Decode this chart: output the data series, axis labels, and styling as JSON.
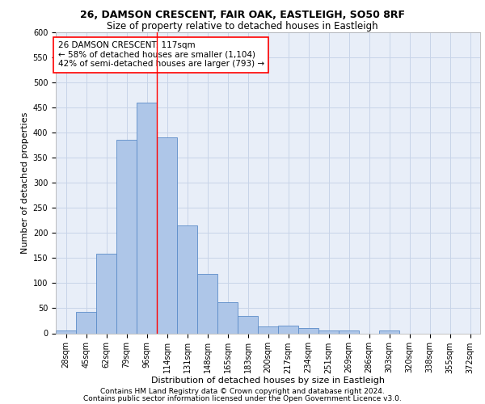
{
  "title1": "26, DAMSON CRESCENT, FAIR OAK, EASTLEIGH, SO50 8RF",
  "title2": "Size of property relative to detached houses in Eastleigh",
  "xlabel": "Distribution of detached houses by size in Eastleigh",
  "ylabel": "Number of detached properties",
  "categories": [
    "28sqm",
    "45sqm",
    "62sqm",
    "79sqm",
    "96sqm",
    "114sqm",
    "131sqm",
    "148sqm",
    "165sqm",
    "183sqm",
    "200sqm",
    "217sqm",
    "234sqm",
    "251sqm",
    "269sqm",
    "286sqm",
    "303sqm",
    "320sqm",
    "338sqm",
    "355sqm",
    "372sqm"
  ],
  "values": [
    5,
    42,
    158,
    385,
    460,
    390,
    215,
    118,
    62,
    35,
    14,
    15,
    10,
    6,
    5,
    0,
    5,
    0,
    0,
    0,
    0
  ],
  "bar_color": "#aec6e8",
  "bar_edge_color": "#5b8cc8",
  "grid_color": "#c8d4e8",
  "background_color": "#e8eef8",
  "vline_color": "red",
  "vline_x": 4.5,
  "annotation_text": "26 DAMSON CRESCENT: 117sqm\n← 58% of detached houses are smaller (1,104)\n42% of semi-detached houses are larger (793) →",
  "annotation_box_color": "white",
  "annotation_box_edge": "red",
  "ylim": [
    0,
    600
  ],
  "yticks": [
    0,
    50,
    100,
    150,
    200,
    250,
    300,
    350,
    400,
    450,
    500,
    550,
    600
  ],
  "footnote1": "Contains HM Land Registry data © Crown copyright and database right 2024.",
  "footnote2": "Contains public sector information licensed under the Open Government Licence v3.0.",
  "title1_fontsize": 9,
  "title2_fontsize": 8.5,
  "xlabel_fontsize": 8,
  "ylabel_fontsize": 8,
  "tick_fontsize": 7,
  "annotation_fontsize": 7.5,
  "footnote_fontsize": 6.5
}
